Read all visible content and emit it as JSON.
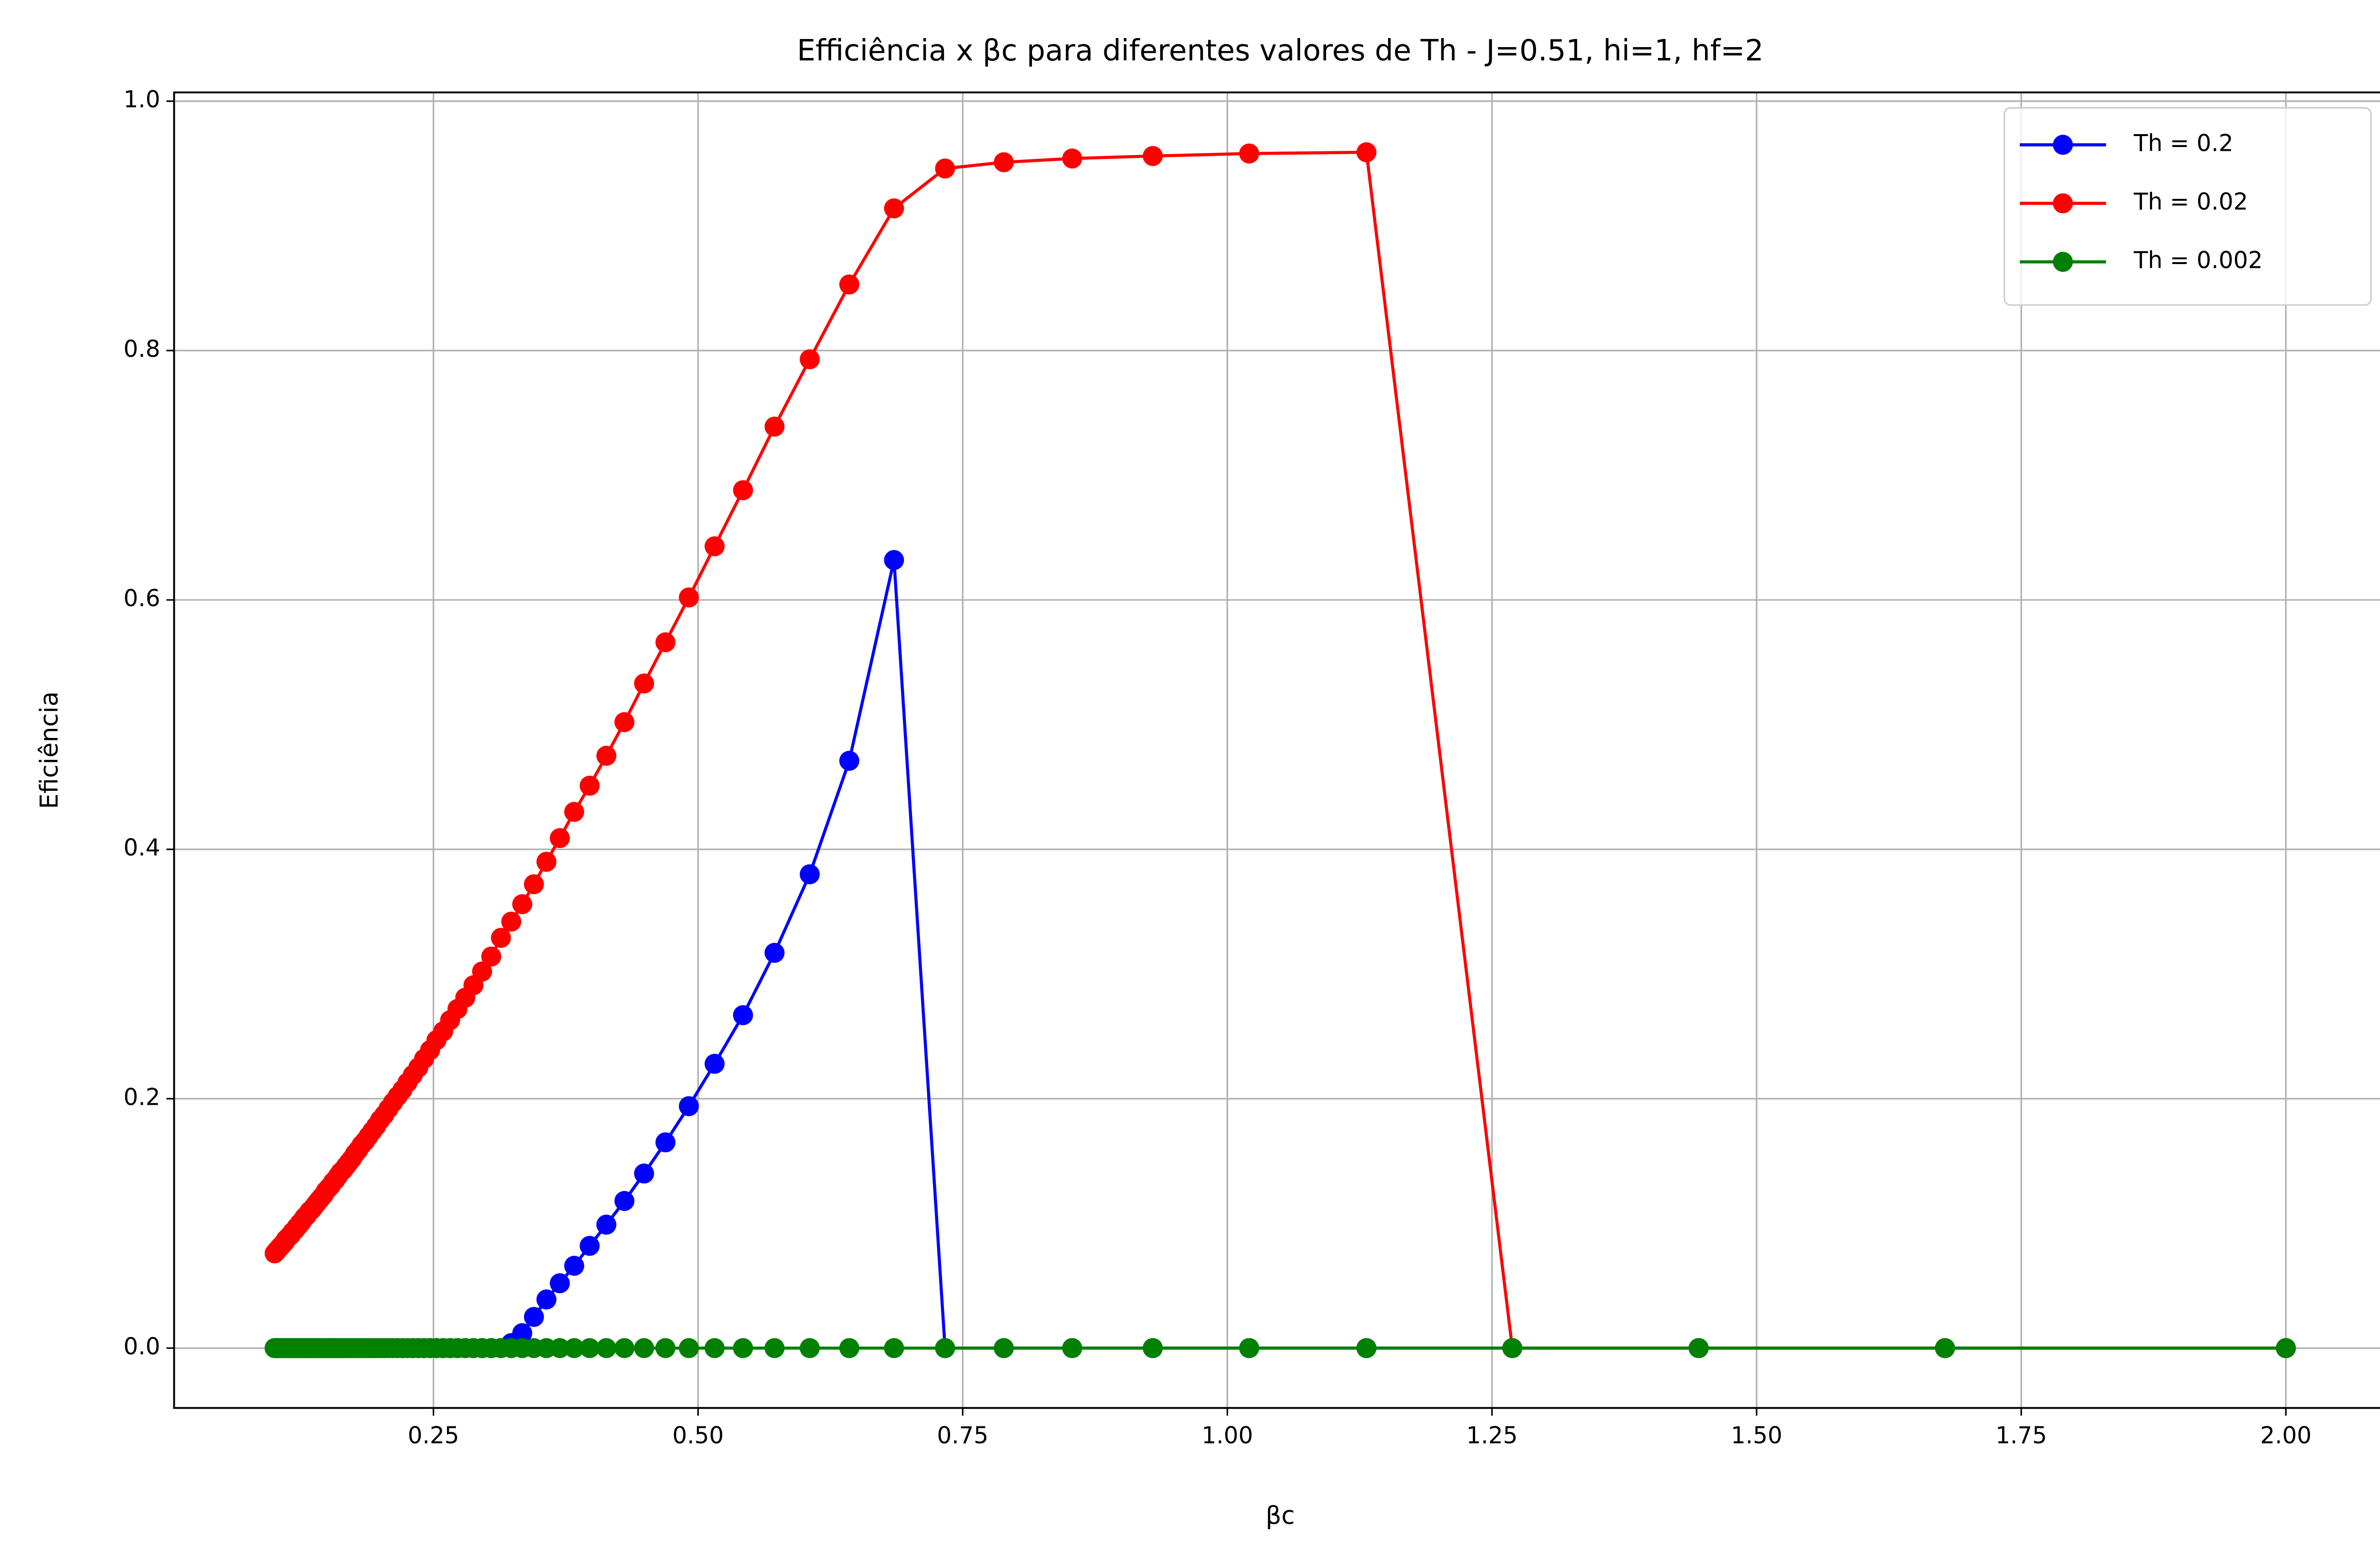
{
  "chart_data": {
    "type": "line",
    "title": "Efficiência x βc para diferentes valores de Th - J=0.51, hi=1, hf=2",
    "xlabel": "βc",
    "ylabel": "Eficiência",
    "x": [
      0.1,
      0.10097,
      0.10196,
      0.10296,
      0.10399,
      0.10504,
      0.10611,
      0.1072,
      0.10832,
      0.10945,
      0.11061,
      0.1118,
      0.11301,
      0.11425,
      0.11552,
      0.11681,
      0.11814,
      0.11949,
      0.12088,
      0.1223,
      0.12375,
      0.12524,
      0.12676,
      0.12832,
      0.12992,
      0.13156,
      0.13324,
      0.13497,
      0.13674,
      0.13856,
      0.14043,
      0.14234,
      0.14431,
      0.14634,
      0.14843,
      0.15057,
      0.15278,
      0.15505,
      0.15739,
      0.15981,
      0.1623,
      0.16486,
      0.16751,
      0.17025,
      0.17308,
      0.176,
      0.17902,
      0.18215,
      0.18539,
      0.18875,
      0.19223,
      0.19585,
      0.1996,
      0.2035,
      0.20755,
      0.21176,
      0.21616,
      0.22074,
      0.22551,
      0.2305,
      0.23571,
      0.24117,
      0.24688,
      0.25287,
      0.25916,
      0.26577,
      0.27273,
      0.28005,
      0.28779,
      0.29596,
      0.30462,
      0.31379,
      0.32353,
      0.3339,
      0.34495,
      0.35676,
      0.3694,
      0.38298,
      0.39759,
      0.41336,
      0.43043,
      0.44898,
      0.46919,
      0.49131,
      0.51563,
      0.54247,
      0.57225,
      0.6055,
      0.64286,
      0.68512,
      0.73333,
      0.78884,
      0.85345,
      0.92958,
      1.02062,
      1.13143,
      1.26923,
      1.44526,
      1.67797,
      2.0
    ],
    "series": [
      {
        "name": "Th = 0.2",
        "color": "#0000ff",
        "values": [
          0,
          0,
          0,
          0,
          0,
          0,
          0,
          0,
          0,
          0,
          0,
          0,
          0,
          0,
          0,
          0,
          0,
          0,
          0,
          0,
          0,
          0,
          0,
          0,
          0,
          0,
          0,
          0,
          0,
          0,
          0,
          0,
          0,
          0,
          0,
          0,
          0,
          0,
          0,
          0,
          0,
          0,
          0,
          0,
          0,
          0,
          0,
          0,
          0,
          0,
          0,
          0,
          0,
          0,
          0,
          0,
          0,
          0,
          0,
          0,
          0,
          0,
          0,
          0,
          0,
          0,
          0,
          0,
          0,
          0,
          0,
          0,
          0.004,
          0.012,
          0.025,
          0.039,
          0.052,
          0.066,
          0.082,
          0.099,
          0.118,
          0.14,
          0.165,
          0.194,
          0.228,
          0.267,
          0.317,
          0.38,
          0.471,
          0.632,
          0,
          0,
          0,
          0,
          0,
          0,
          0,
          0,
          0,
          0
        ]
      },
      {
        "name": "Th = 0.02",
        "color": "#ff0000",
        "values": [
          0.076,
          0.077,
          0.078,
          0.079,
          0.08,
          0.081,
          0.082,
          0.083,
          0.084,
          0.085,
          0.087,
          0.088,
          0.089,
          0.09,
          0.091,
          0.093,
          0.094,
          0.095,
          0.097,
          0.098,
          0.1,
          0.101,
          0.103,
          0.105,
          0.106,
          0.108,
          0.11,
          0.111,
          0.113,
          0.115,
          0.117,
          0.119,
          0.121,
          0.123,
          0.126,
          0.128,
          0.13,
          0.133,
          0.135,
          0.138,
          0.141,
          0.143,
          0.146,
          0.149,
          0.152,
          0.156,
          0.159,
          0.163,
          0.166,
          0.17,
          0.174,
          0.178,
          0.183,
          0.187,
          0.192,
          0.197,
          0.202,
          0.207,
          0.213,
          0.219,
          0.225,
          0.232,
          0.239,
          0.247,
          0.254,
          0.263,
          0.272,
          0.281,
          0.291,
          0.302,
          0.314,
          0.329,
          0.342,
          0.356,
          0.372,
          0.39,
          0.409,
          0.43,
          0.451,
          0.475,
          0.502,
          0.533,
          0.566,
          0.602,
          0.643,
          0.688,
          0.739,
          0.793,
          0.853,
          0.914,
          0.946,
          0.951,
          0.954,
          0.956,
          0.958,
          0.959,
          0,
          0,
          0,
          0
        ]
      },
      {
        "name": "Th = 0.002",
        "color": "#008000",
        "values": [
          0,
          0,
          0,
          0,
          0,
          0,
          0,
          0,
          0,
          0,
          0,
          0,
          0,
          0,
          0,
          0,
          0,
          0,
          0,
          0,
          0,
          0,
          0,
          0,
          0,
          0,
          0,
          0,
          0,
          0,
          0,
          0,
          0,
          0,
          0,
          0,
          0,
          0,
          0,
          0,
          0,
          0,
          0,
          0,
          0,
          0,
          0,
          0,
          0,
          0,
          0,
          0,
          0,
          0,
          0,
          0,
          0,
          0,
          0,
          0,
          0,
          0,
          0,
          0,
          0,
          0,
          0,
          0,
          0,
          0,
          0,
          0,
          0,
          0,
          0,
          0,
          0,
          0,
          0,
          0,
          0,
          0,
          0,
          0,
          0,
          0,
          0,
          0,
          0,
          0,
          0,
          0,
          0,
          0,
          0,
          0,
          0,
          0,
          0,
          0
        ]
      }
    ],
    "xlim": [
      0.005,
      2.095
    ],
    "ylim": [
      -0.048,
      1.007
    ],
    "xticks": [
      0.25,
      {
        "value": 0.5,
        "label": "0.50"
      },
      0.75,
      {
        "value": 1,
        "label": "1.00"
      },
      1.25,
      {
        "value": 1.5,
        "label": "1.50"
      },
      1.75,
      {
        "value": 2,
        "label": "2.00"
      }
    ],
    "yticks": [
      {
        "value": 0,
        "label": "0.0"
      },
      0.2,
      0.4,
      0.6,
      0.8,
      {
        "value": 1,
        "label": "1.0"
      }
    ],
    "grid": true,
    "legend": "upper right"
  }
}
